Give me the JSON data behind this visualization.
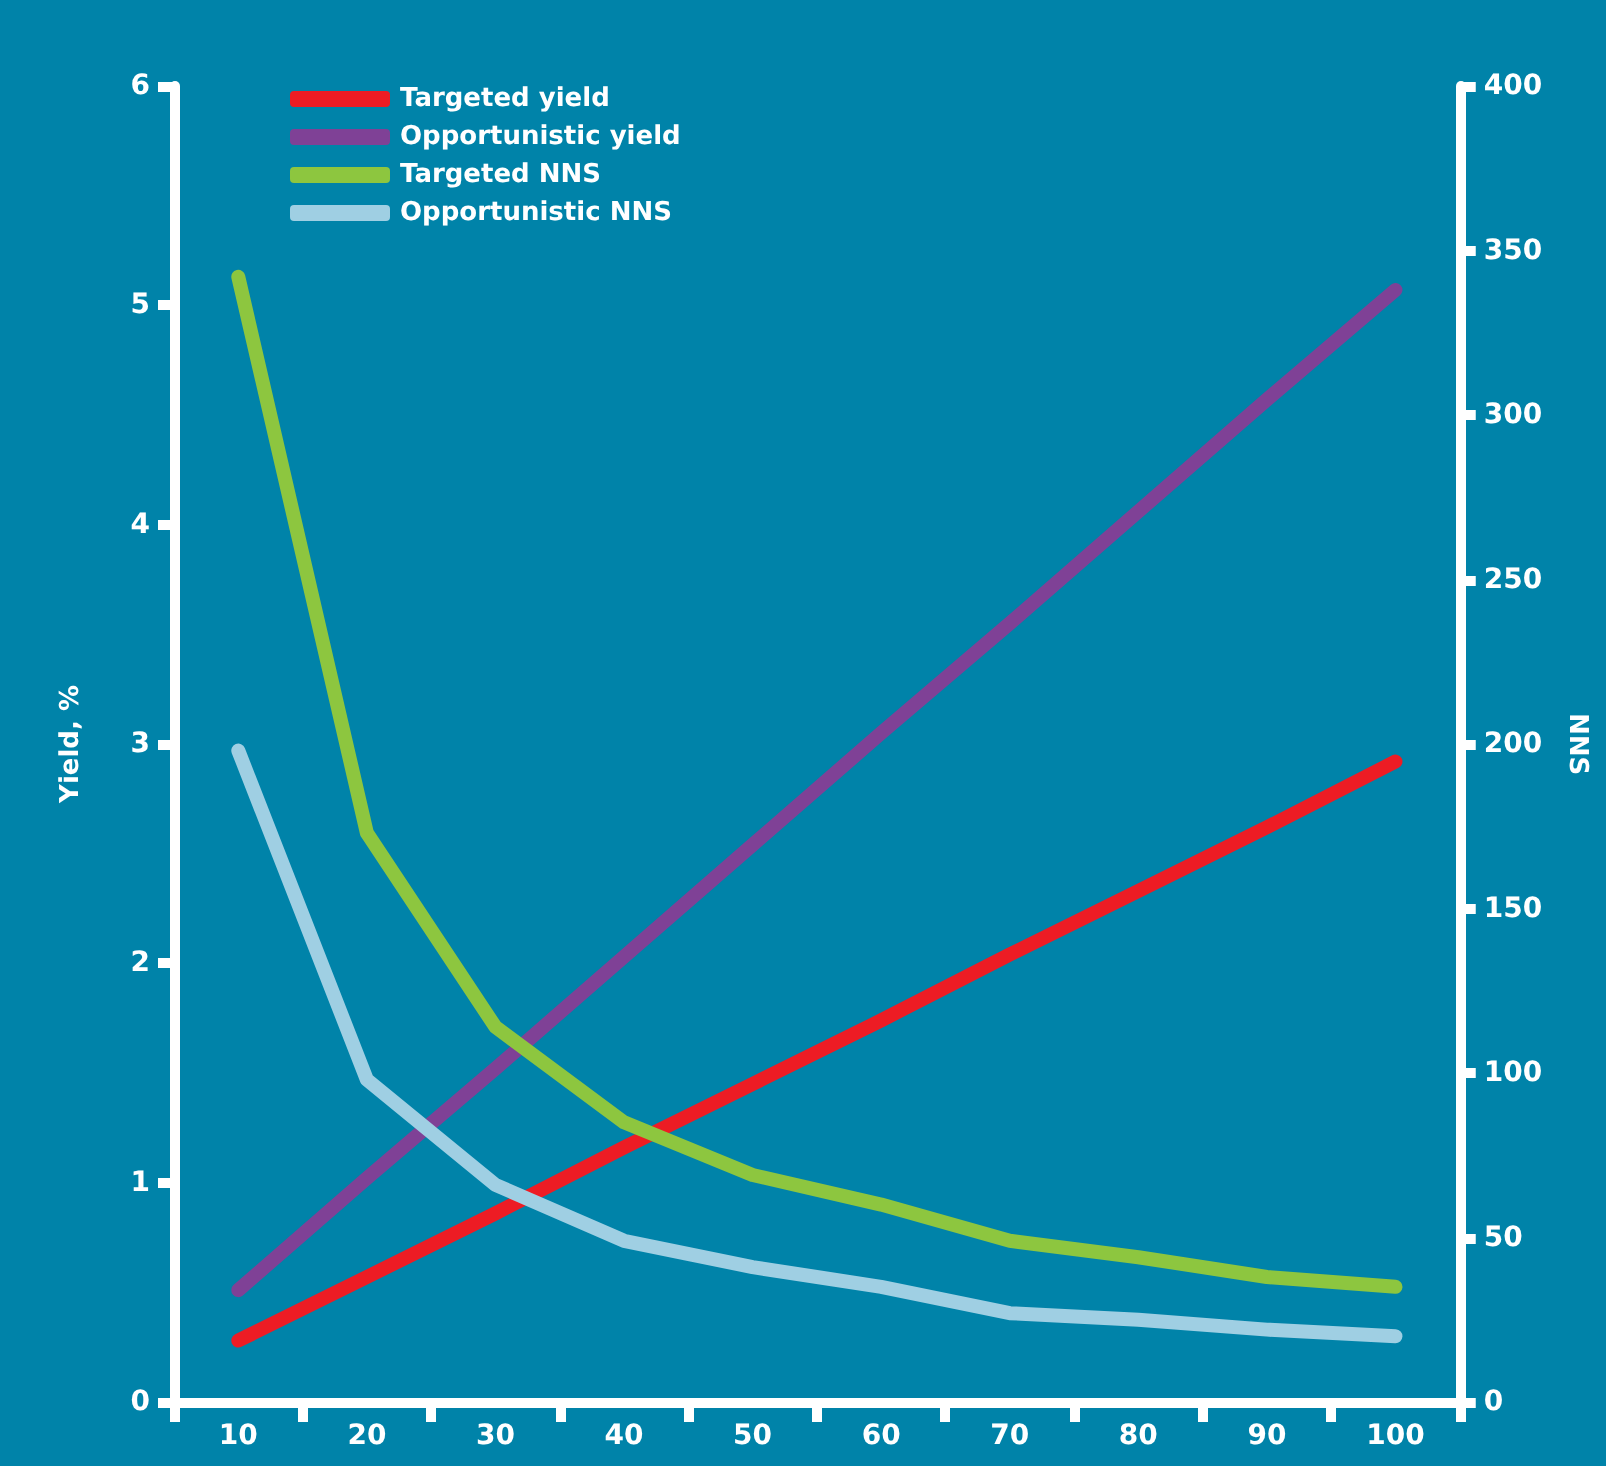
{
  "chart_data": {
    "type": "line",
    "ylabel": "Yield, %",
    "y2label": "NNS",
    "categories": [
      "10",
      "20",
      "30",
      "40",
      "50",
      "60",
      "70",
      "80",
      "90",
      "100"
    ],
    "series": [
      {
        "name": "Targeted yield",
        "color": "#ed1c24",
        "values": [
          0.28,
          0.57,
          0.86,
          1.16,
          1.45,
          1.74,
          2.04,
          2.33,
          2.62,
          2.92
        ]
      },
      {
        "name": "Opportunistic yield",
        "color": "#7f4196",
        "values": [
          0.51,
          1.02,
          1.52,
          2.03,
          2.54,
          3.05,
          3.55,
          4.06,
          4.57,
          5.07
        ]
      },
      {
        "name": "Targeted NNS",
        "color": "#8dc63f",
        "axis": "y2",
        "values": [
          342,
          173,
          114,
          85,
          69,
          60,
          49,
          44,
          38,
          35
        ]
      },
      {
        "name": "Opportunistic NNS",
        "color": "#9fcfe3",
        "axis": "y2",
        "values": [
          198,
          98,
          66,
          49,
          41,
          35,
          27,
          25,
          22,
          20
        ]
      }
    ],
    "ylim": [
      0,
      6
    ],
    "yticks": [
      0,
      1,
      2,
      3,
      4,
      5,
      6
    ],
    "y2lim": [
      0,
      400
    ],
    "y2ticks": [
      0,
      50,
      100,
      150,
      200,
      250,
      300,
      350,
      400
    ],
    "legend": "top left",
    "grid": false,
    "marker": "none",
    "line_style": "solid"
  }
}
